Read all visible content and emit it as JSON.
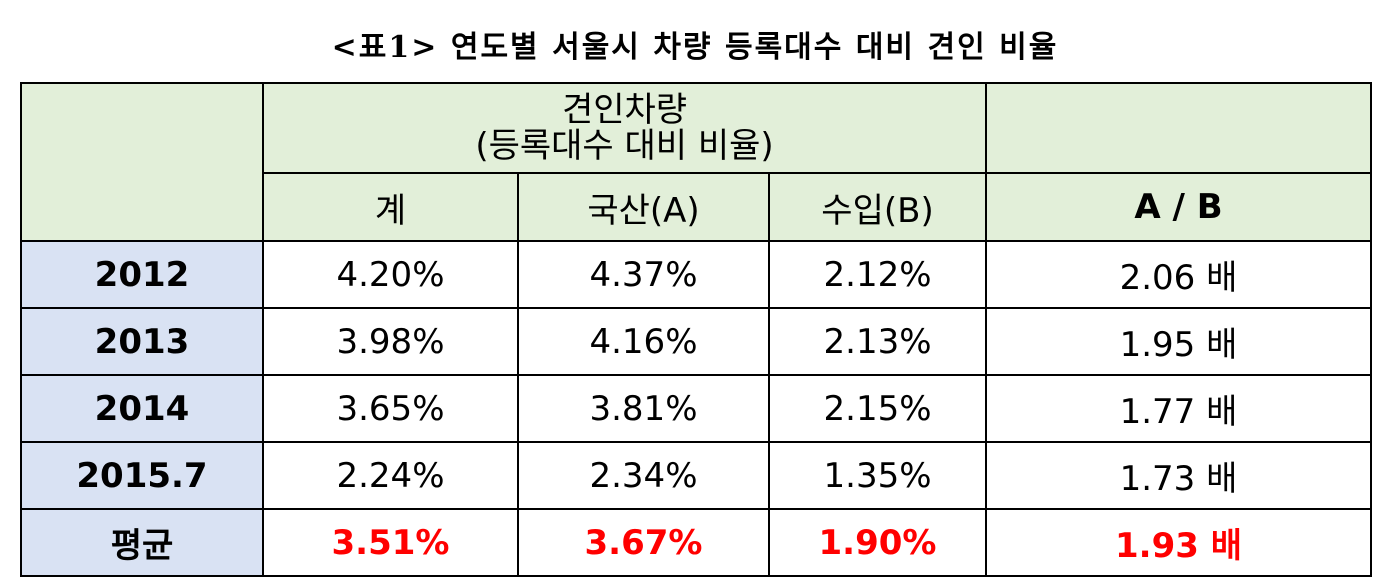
{
  "title": "<표1> 연도별 서울시 차량 등록대수 대비 견인 비율",
  "table": {
    "group_header": [
      "견인차량",
      "(등록대수 대비 비율)"
    ],
    "columns": [
      "계",
      "국산(A)",
      "수입(B)",
      "A / B"
    ],
    "rows": [
      [
        "2012",
        "4.20%",
        "4.37%",
        "2.12%",
        "2.06 배"
      ],
      [
        "2013",
        "3.98%",
        "4.16%",
        "2.13%",
        "1.95 배"
      ],
      [
        "2014",
        "3.65%",
        "3.81%",
        "2.15%",
        "1.77 배"
      ],
      [
        "2015.7",
        "2.24%",
        "2.34%",
        "1.35%",
        "1.73 배"
      ]
    ],
    "average": [
      "평균",
      "3.51%",
      "3.67%",
      "1.90%",
      "1.93 배"
    ]
  }
}
